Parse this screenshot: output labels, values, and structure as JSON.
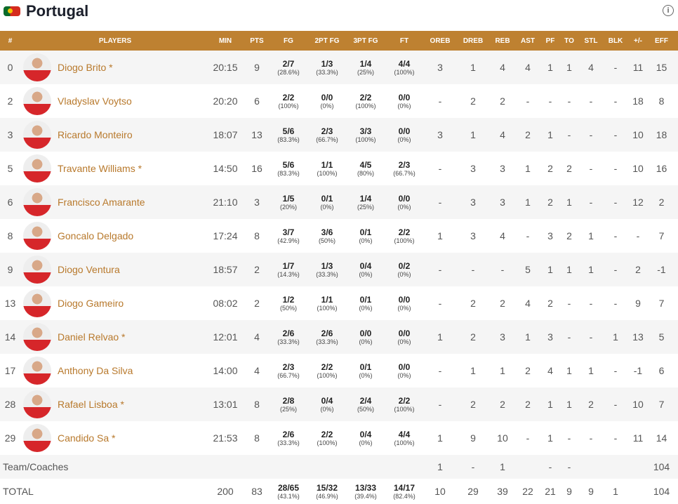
{
  "team": {
    "name": "Portugal",
    "flag_icon": "portugal-flag-icon",
    "info_icon": "info-icon"
  },
  "colors": {
    "header": "#be8131",
    "name": "#b8792c"
  },
  "headers": [
    "#",
    "PLAYERS",
    "MIN",
    "PTS",
    "FG",
    "2PT FG",
    "3PT FG",
    "FT",
    "OREB",
    "DREB",
    "REB",
    "AST",
    "PF",
    "TO",
    "STL",
    "BLK",
    "+/-",
    "EFF"
  ],
  "players": [
    {
      "no": "0",
      "name": "Diogo Brito *",
      "min": "20:15",
      "pts": "9",
      "fg": "2/7",
      "fgp": "(28.6%)",
      "p2": "1/3",
      "p2p": "(33.3%)",
      "p3": "1/4",
      "p3p": "(25%)",
      "ft": "4/4",
      "ftp": "(100%)",
      "oreb": "3",
      "dreb": "1",
      "reb": "4",
      "ast": "4",
      "pf": "1",
      "to": "1",
      "stl": "4",
      "blk": "-",
      "pm": "11",
      "eff": "15"
    },
    {
      "no": "2",
      "name": "Vladyslav Voytso",
      "min": "20:20",
      "pts": "6",
      "fg": "2/2",
      "fgp": "(100%)",
      "p2": "0/0",
      "p2p": "(0%)",
      "p3": "2/2",
      "p3p": "(100%)",
      "ft": "0/0",
      "ftp": "(0%)",
      "oreb": "-",
      "dreb": "2",
      "reb": "2",
      "ast": "-",
      "pf": "-",
      "to": "-",
      "stl": "-",
      "blk": "-",
      "pm": "18",
      "eff": "8"
    },
    {
      "no": "3",
      "name": "Ricardo Monteiro",
      "min": "18:07",
      "pts": "13",
      "fg": "5/6",
      "fgp": "(83.3%)",
      "p2": "2/3",
      "p2p": "(66.7%)",
      "p3": "3/3",
      "p3p": "(100%)",
      "ft": "0/0",
      "ftp": "(0%)",
      "oreb": "3",
      "dreb": "1",
      "reb": "4",
      "ast": "2",
      "pf": "1",
      "to": "-",
      "stl": "-",
      "blk": "-",
      "pm": "10",
      "eff": "18"
    },
    {
      "no": "5",
      "name": "Travante Williams *",
      "min": "14:50",
      "pts": "16",
      "fg": "5/6",
      "fgp": "(83.3%)",
      "p2": "1/1",
      "p2p": "(100%)",
      "p3": "4/5",
      "p3p": "(80%)",
      "ft": "2/3",
      "ftp": "(66.7%)",
      "oreb": "-",
      "dreb": "3",
      "reb": "3",
      "ast": "1",
      "pf": "2",
      "to": "2",
      "stl": "-",
      "blk": "-",
      "pm": "10",
      "eff": "16"
    },
    {
      "no": "6",
      "name": "Francisco Amarante",
      "min": "21:10",
      "pts": "3",
      "fg": "1/5",
      "fgp": "(20%)",
      "p2": "0/1",
      "p2p": "(0%)",
      "p3": "1/4",
      "p3p": "(25%)",
      "ft": "0/0",
      "ftp": "(0%)",
      "oreb": "-",
      "dreb": "3",
      "reb": "3",
      "ast": "1",
      "pf": "2",
      "to": "1",
      "stl": "-",
      "blk": "-",
      "pm": "12",
      "eff": "2"
    },
    {
      "no": "8",
      "name": "Goncalo Delgado",
      "min": "17:24",
      "pts": "8",
      "fg": "3/7",
      "fgp": "(42.9%)",
      "p2": "3/6",
      "p2p": "(50%)",
      "p3": "0/1",
      "p3p": "(0%)",
      "ft": "2/2",
      "ftp": "(100%)",
      "oreb": "1",
      "dreb": "3",
      "reb": "4",
      "ast": "-",
      "pf": "3",
      "to": "2",
      "stl": "1",
      "blk": "-",
      "pm": "-",
      "eff": "7"
    },
    {
      "no": "9",
      "name": "Diogo Ventura",
      "min": "18:57",
      "pts": "2",
      "fg": "1/7",
      "fgp": "(14.3%)",
      "p2": "1/3",
      "p2p": "(33.3%)",
      "p3": "0/4",
      "p3p": "(0%)",
      "ft": "0/2",
      "ftp": "(0%)",
      "oreb": "-",
      "dreb": "-",
      "reb": "-",
      "ast": "5",
      "pf": "1",
      "to": "1",
      "stl": "1",
      "blk": "-",
      "pm": "2",
      "eff": "-1"
    },
    {
      "no": "13",
      "name": "Diogo Gameiro",
      "min": "08:02",
      "pts": "2",
      "fg": "1/2",
      "fgp": "(50%)",
      "p2": "1/1",
      "p2p": "(100%)",
      "p3": "0/1",
      "p3p": "(0%)",
      "ft": "0/0",
      "ftp": "(0%)",
      "oreb": "-",
      "dreb": "2",
      "reb": "2",
      "ast": "4",
      "pf": "2",
      "to": "-",
      "stl": "-",
      "blk": "-",
      "pm": "9",
      "eff": "7"
    },
    {
      "no": "14",
      "name": "Daniel Relvao *",
      "min": "12:01",
      "pts": "4",
      "fg": "2/6",
      "fgp": "(33.3%)",
      "p2": "2/6",
      "p2p": "(33.3%)",
      "p3": "0/0",
      "p3p": "(0%)",
      "ft": "0/0",
      "ftp": "(0%)",
      "oreb": "1",
      "dreb": "2",
      "reb": "3",
      "ast": "1",
      "pf": "3",
      "to": "-",
      "stl": "-",
      "blk": "1",
      "pm": "13",
      "eff": "5"
    },
    {
      "no": "17",
      "name": "Anthony Da Silva",
      "min": "14:00",
      "pts": "4",
      "fg": "2/3",
      "fgp": "(66.7%)",
      "p2": "2/2",
      "p2p": "(100%)",
      "p3": "0/1",
      "p3p": "(0%)",
      "ft": "0/0",
      "ftp": "(0%)",
      "oreb": "-",
      "dreb": "1",
      "reb": "1",
      "ast": "2",
      "pf": "4",
      "to": "1",
      "stl": "1",
      "blk": "-",
      "pm": "-1",
      "eff": "6"
    },
    {
      "no": "28",
      "name": "Rafael Lisboa *",
      "min": "13:01",
      "pts": "8",
      "fg": "2/8",
      "fgp": "(25%)",
      "p2": "0/4",
      "p2p": "(0%)",
      "p3": "2/4",
      "p3p": "(50%)",
      "ft": "2/2",
      "ftp": "(100%)",
      "oreb": "-",
      "dreb": "2",
      "reb": "2",
      "ast": "2",
      "pf": "1",
      "to": "1",
      "stl": "2",
      "blk": "-",
      "pm": "10",
      "eff": "7"
    },
    {
      "no": "29",
      "name": "Candido Sa *",
      "min": "21:53",
      "pts": "8",
      "fg": "2/6",
      "fgp": "(33.3%)",
      "p2": "2/2",
      "p2p": "(100%)",
      "p3": "0/4",
      "p3p": "(0%)",
      "ft": "4/4",
      "ftp": "(100%)",
      "oreb": "1",
      "dreb": "9",
      "reb": "10",
      "ast": "-",
      "pf": "1",
      "to": "-",
      "stl": "-",
      "blk": "-",
      "pm": "11",
      "eff": "14"
    }
  ],
  "team_row": {
    "label": "Team/Coaches",
    "oreb": "1",
    "dreb": "-",
    "reb": "1",
    "pf": "-",
    "to": "-",
    "eff": "104"
  },
  "total": {
    "label": "TOTAL",
    "min": "200",
    "pts": "83",
    "fg": "28/65",
    "fgp": "(43.1%)",
    "p2": "15/32",
    "p2p": "(46.9%)",
    "p3": "13/33",
    "p3p": "(39.4%)",
    "ft": "14/17",
    "ftp": "(82.4%)",
    "oreb": "10",
    "dreb": "29",
    "reb": "39",
    "ast": "22",
    "pf": "21",
    "to": "9",
    "stl": "9",
    "blk": "1",
    "eff": "104"
  }
}
